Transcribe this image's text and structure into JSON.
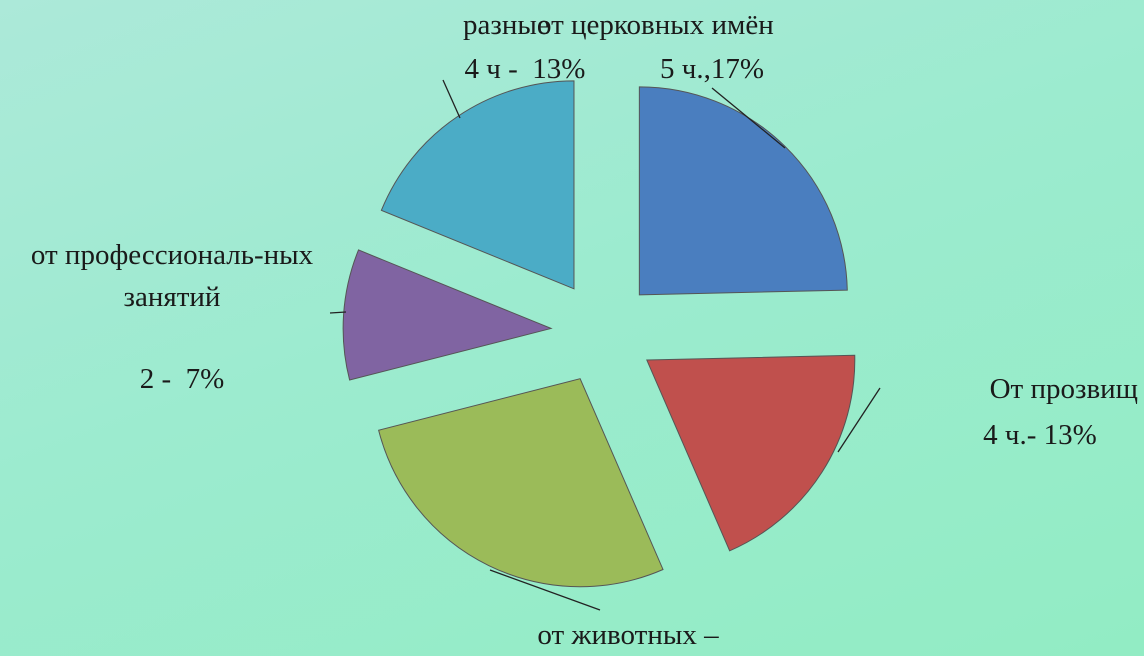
{
  "chart_data": {
    "type": "pie",
    "categories": [
      "от церковных имён",
      "От прозвищ",
      "от животных –",
      "от профессиональ-ных занятий",
      "разные"
    ],
    "values": [
      17,
      13,
      19,
      7,
      13
    ],
    "value_labels": [
      "5 ч.,17%",
      "4 ч.- 13%",
      null,
      "2 -  7%",
      "4 ч -  13%"
    ],
    "colors": [
      "#4a7ebf",
      "#c0504d",
      "#9bbb59",
      "#8064a2",
      "#4bacc6"
    ]
  }
}
